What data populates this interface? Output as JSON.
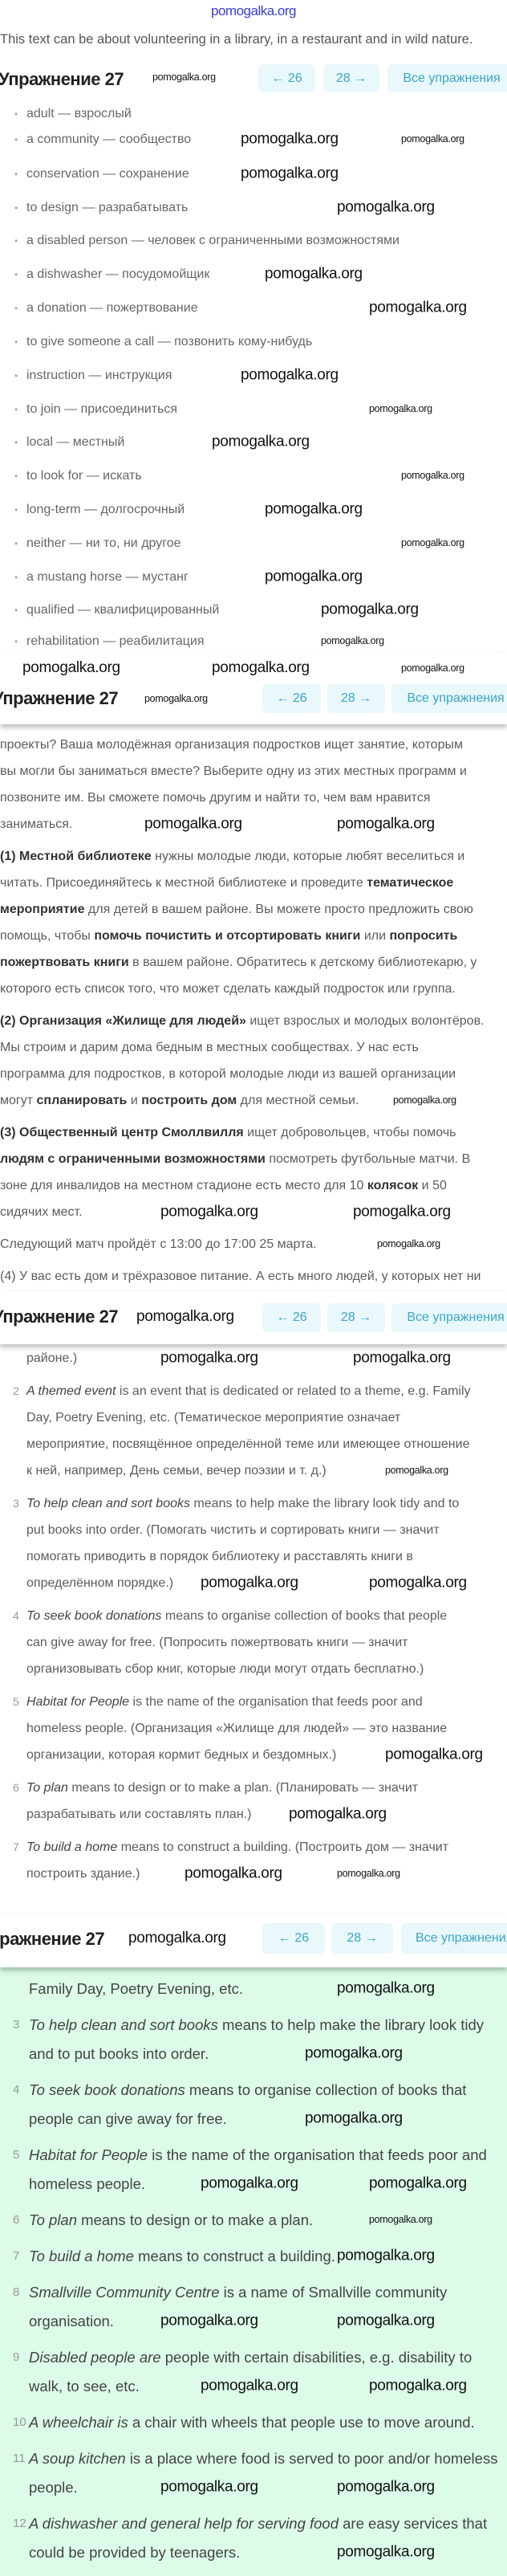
{
  "site_watermark": "pomogalka.org",
  "intro": "This text can be about volunteering in a library, in a restaurant and in wild nature.",
  "header": {
    "title": "Упражнение 27",
    "prev_label": "← 26",
    "next_label": "28 →",
    "all_label": "Все упражнения"
  },
  "colors": {
    "accent": "#3aa6c6",
    "button_bg": "#e9f8fb",
    "answer_bg": "#dcfbe9"
  },
  "vocab": [
    "adult — взрослый",
    "a community — сообщество",
    "conservation — сохранение",
    "to design — разрабатывать",
    "a disabled person — человек с ограниченными возможностями",
    "a dishwasher — посудомойщик",
    "a donation — пожертвование",
    "to give someone a call — позвонить кому-нибудь",
    "instruction — инструкция",
    "to join — присоединиться",
    "local — местный",
    "to look for — искать",
    "long-term — долгосрочный",
    "neither — ни то, ни другое",
    "a mustang horse — мустанг",
    "qualified — квалифицированный",
    "rehabilitation — реабилитация"
  ],
  "translation": [
    [
      [
        [
          "проекты? Ваша молодёжная организация подростков ищет занятие, которым",
          ""
        ]
      ],
      [
        [
          "вы могли бы заниматься вместе? Выберите одну из этих местных программ и",
          ""
        ]
      ],
      [
        [
          "позвоните им. Вы сможете помочь другим и найти то, чем вам нравится",
          ""
        ]
      ],
      [
        [
          "заниматься.",
          ""
        ]
      ]
    ],
    [
      [
        [
          "(1) Местной библиотеке",
          "b"
        ],
        [
          " нужны молодые люди, которые любят веселиться и",
          ""
        ]
      ],
      [
        [
          "читать. Присоединяйтесь к местной библиотеке и проведите ",
          ""
        ],
        [
          "тематическое",
          "b"
        ]
      ],
      [
        [
          "мероприятие",
          "b"
        ],
        [
          " для детей в вашем районе. Вы можете просто предложить свою",
          ""
        ]
      ],
      [
        [
          "помощь, чтобы ",
          ""
        ],
        [
          "помочь почистить и отсортировать книги",
          "b"
        ],
        [
          " или ",
          ""
        ],
        [
          "попросить",
          "b"
        ]
      ],
      [
        [
          "пожертвовать книги",
          "b"
        ],
        [
          " в вашем районе. Обратитесь к детскому библиотекарю, у",
          ""
        ]
      ],
      [
        [
          "которого есть список того, что может сделать каждый подросток или группа.",
          ""
        ]
      ]
    ],
    [
      [
        [
          "(2) Организация «Жилище для людей»",
          "b"
        ],
        [
          " ищет взрослых и молодых волонтёров.",
          ""
        ]
      ],
      [
        [
          "Мы строим и дарим дома бедным в местных сообществах. У нас есть",
          ""
        ]
      ],
      [
        [
          "программа для подростков, в которой молодые люди из вашей организации",
          ""
        ]
      ],
      [
        [
          "могут ",
          ""
        ],
        [
          "спланировать",
          "b"
        ],
        [
          " и ",
          ""
        ],
        [
          "построить дом",
          "b"
        ],
        [
          " для местной семьи.",
          ""
        ]
      ]
    ],
    [
      [
        [
          "(3) Общественный центр Смоллвилля",
          "b"
        ],
        [
          " ищет добровольцев, чтобы помочь",
          ""
        ]
      ],
      [
        [
          "людям с ограниченными возможностями",
          "b"
        ],
        [
          " посмотреть футбольные матчи. В",
          ""
        ]
      ],
      [
        [
          "зоне для инвалидов на местном стадионе есть место для 10 ",
          ""
        ],
        [
          "колясок",
          "b"
        ],
        [
          " и 50",
          ""
        ]
      ],
      [
        [
          "сидячих мест.",
          ""
        ]
      ]
    ],
    [
      [
        [
          "Следующий матч пройдёт с 13:00 до 17:00 25 марта.",
          ""
        ]
      ]
    ],
    [
      [
        [
          "(4) У вас есть дом и трёхразовое питание. А есть много людей, у которых нет ни",
          ""
        ]
      ]
    ]
  ],
  "explanations": [
    {
      "num": "",
      "lines": [
        [
          [
            "районе.)",
            ""
          ]
        ]
      ]
    },
    {
      "num": "2",
      "lines": [
        [
          [
            "A themed event",
            "i"
          ],
          [
            " is an event that is dedicated or related to a theme, e.g. Family",
            ""
          ]
        ],
        [
          [
            "Day, Poetry Evening, etc. (Тематическое мероприятие означает",
            ""
          ]
        ],
        [
          [
            "мероприятие, посвящённое определённой теме или имеющее отношение",
            ""
          ]
        ],
        [
          [
            "к ней, например, День семьи, вечер поэзии и т. д.)",
            ""
          ]
        ]
      ]
    },
    {
      "num": "3",
      "lines": [
        [
          [
            "To help clean and sort books",
            "i"
          ],
          [
            " means to help make the library look tidy and to",
            ""
          ]
        ],
        [
          [
            "put books into order. (Помогать чистить и сортировать книги — значит",
            ""
          ]
        ],
        [
          [
            "помогать приводить в порядок библиотеку и расставлять книги в",
            ""
          ]
        ],
        [
          [
            "определённом порядке.)",
            ""
          ]
        ]
      ]
    },
    {
      "num": "4",
      "lines": [
        [
          [
            "To seek book donations",
            "i"
          ],
          [
            " means to organise collection of books that people",
            ""
          ]
        ],
        [
          [
            "can give away for free. (Попросить пожертвовать книги — значит",
            ""
          ]
        ],
        [
          [
            "организовывать сбор книг, которые люди могут отдать бесплатно.)",
            ""
          ]
        ]
      ]
    },
    {
      "num": "5",
      "lines": [
        [
          [
            "Habitat for People",
            "i"
          ],
          [
            " is the name of the organisation that feeds poor and",
            ""
          ]
        ],
        [
          [
            "homeless people. (Организация «Жилище для людей» — это название",
            ""
          ]
        ],
        [
          [
            "организации, которая кормит бедных и бездомных.)",
            ""
          ]
        ]
      ]
    },
    {
      "num": "6",
      "lines": [
        [
          [
            "To plan",
            "i"
          ],
          [
            " means to design or to make a plan. (Планировать — значит",
            ""
          ]
        ],
        [
          [
            "разрабатывать или составлять план.)",
            ""
          ]
        ]
      ]
    },
    {
      "num": "7",
      "lines": [
        [
          [
            "To build a home",
            "i"
          ],
          [
            " means to construct a building. (Построить дом — значит",
            ""
          ]
        ],
        [
          [
            "построить здание.)",
            ""
          ]
        ]
      ]
    }
  ],
  "answers": [
    {
      "num": "",
      "lines": [
        [
          [
            "Family Day, Poetry Evening, etc.",
            ""
          ]
        ]
      ]
    },
    {
      "num": "3",
      "lines": [
        [
          [
            "To help clean and sort books",
            "i"
          ],
          [
            " means to help make the library look tidy",
            ""
          ]
        ],
        [
          [
            "and to put books into order.",
            ""
          ]
        ]
      ]
    },
    {
      "num": "4",
      "lines": [
        [
          [
            "To seek book donations",
            "i"
          ],
          [
            " means to organise collection of books that",
            ""
          ]
        ],
        [
          [
            "people can give away for free.",
            ""
          ]
        ]
      ]
    },
    {
      "num": "5",
      "lines": [
        [
          [
            "Habitat for People",
            "i"
          ],
          [
            " is the name of the organisation that feeds poor and",
            ""
          ]
        ],
        [
          [
            "homeless people.",
            ""
          ]
        ]
      ]
    },
    {
      "num": "6",
      "lines": [
        [
          [
            "To plan",
            "i"
          ],
          [
            " means to design or to make a plan.",
            ""
          ]
        ]
      ]
    },
    {
      "num": "7",
      "lines": [
        [
          [
            "To build a home",
            "i"
          ],
          [
            " means to construct a building.",
            ""
          ]
        ]
      ]
    },
    {
      "num": "8",
      "lines": [
        [
          [
            "Smallville Community Centre",
            "i"
          ],
          [
            " is a name of Smallville community",
            ""
          ]
        ],
        [
          [
            "organisation.",
            ""
          ]
        ]
      ]
    },
    {
      "num": "9",
      "lines": [
        [
          [
            "Disabled people are",
            "i"
          ],
          [
            " people with certain disabilities, e.g. disability to",
            ""
          ]
        ],
        [
          [
            "walk, to see, etc.",
            ""
          ]
        ]
      ]
    },
    {
      "num": "10",
      "lines": [
        [
          [
            "A wheelchair is",
            "i"
          ],
          [
            " a chair with wheels that people use to move around.",
            ""
          ]
        ]
      ]
    },
    {
      "num": "11",
      "lines": [
        [
          [
            "A soup kitchen",
            "i"
          ],
          [
            " is a place where food is served to poor and/or homeless",
            ""
          ]
        ],
        [
          [
            "people.",
            ""
          ]
        ]
      ]
    },
    {
      "num": "12",
      "lines": [
        [
          [
            "A dishwasher and general help for serving food",
            "i"
          ],
          [
            " are easy services that",
            ""
          ]
        ],
        [
          [
            "could be provided by teenagers.",
            ""
          ]
        ]
      ]
    }
  ]
}
